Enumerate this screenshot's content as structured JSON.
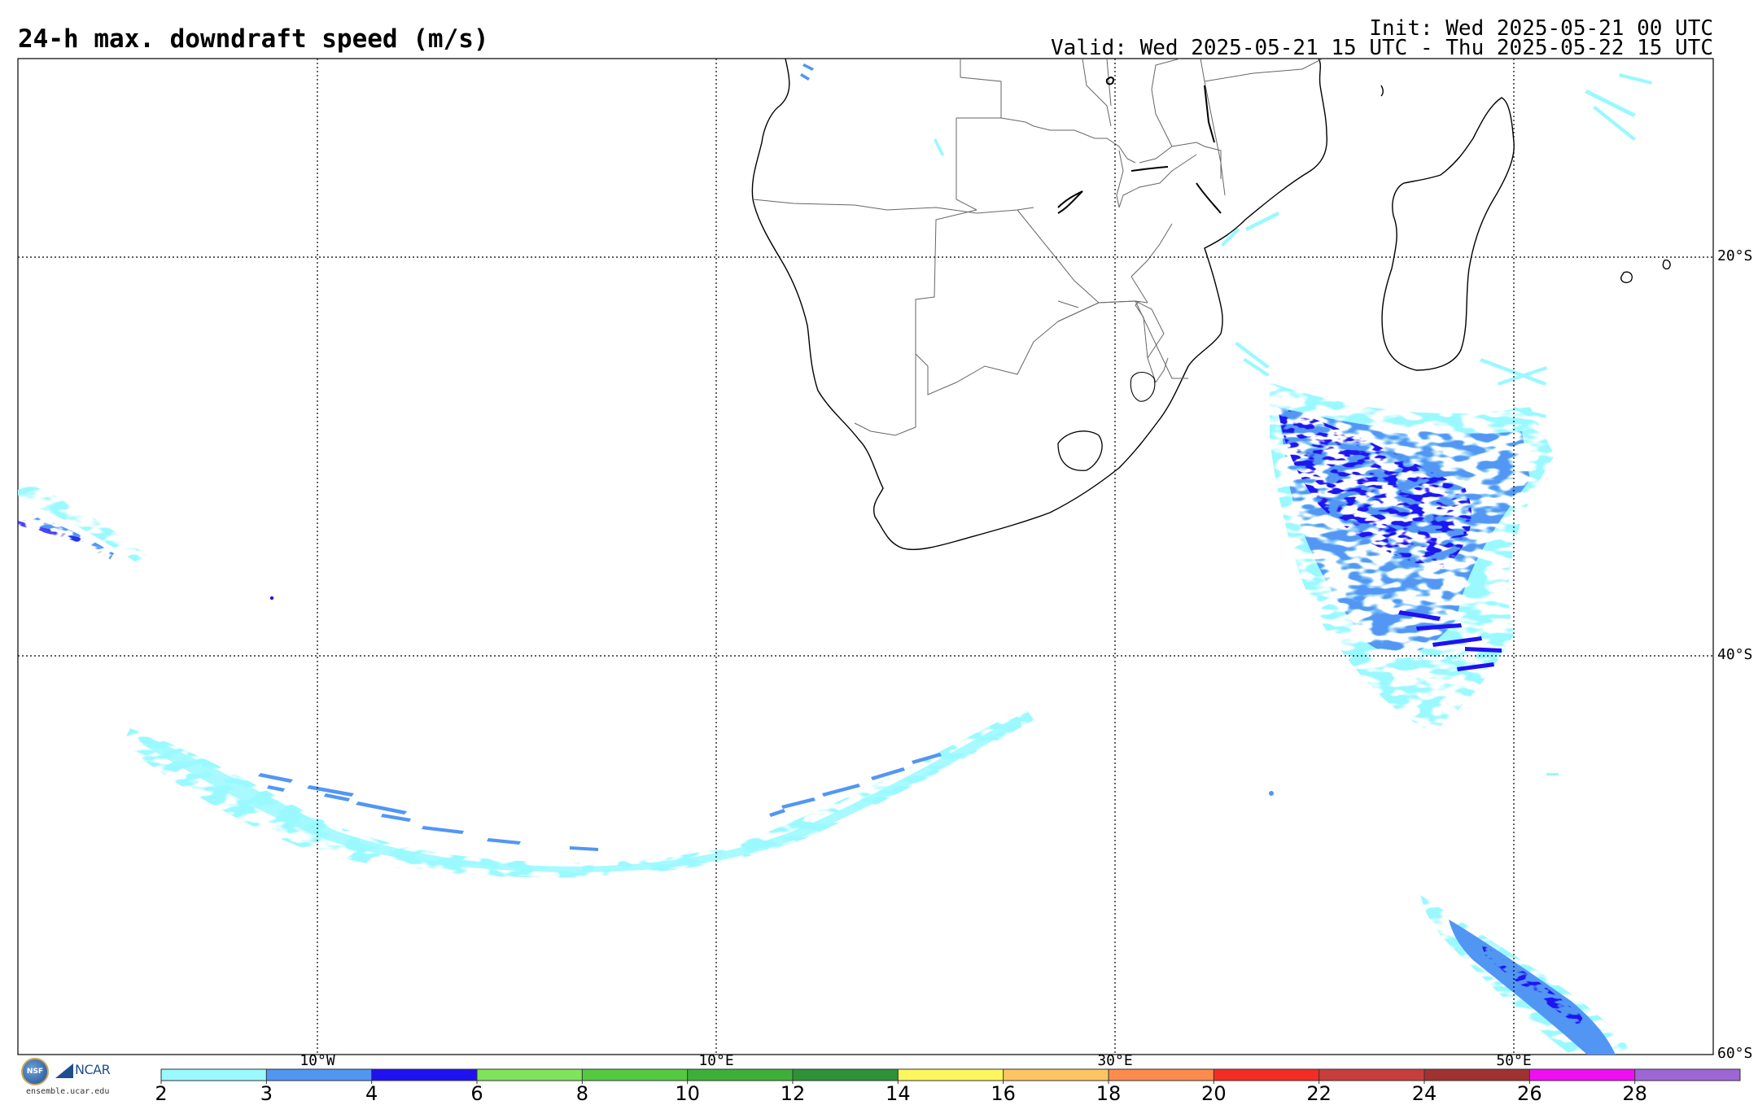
{
  "header": {
    "title": "24-h max. downdraft speed (m/s)",
    "init": "Init: Wed 2025-05-21 00 UTC",
    "valid": "Valid: Wed 2025-05-21 15 UTC - Thu 2025-05-22 15 UTC"
  },
  "map": {
    "lon_ticks": [
      {
        "label": "10°W",
        "lon": -10
      },
      {
        "label": "10°E",
        "lon": 10
      },
      {
        "label": "30°E",
        "lon": 30
      },
      {
        "label": "50°E",
        "lon": 50
      }
    ],
    "lat_ticks": [
      {
        "label": "20°S",
        "lat": -20
      },
      {
        "label": "40°S",
        "lat": -40
      },
      {
        "label": "60°S",
        "lat": -60
      }
    ],
    "grid": "dotted",
    "regions": [
      "southern-africa",
      "madagascar"
    ]
  },
  "colorbar": {
    "labels": [
      "2",
      "3",
      "4",
      "6",
      "8",
      "10",
      "12",
      "14",
      "16",
      "18",
      "20",
      "22",
      "24",
      "26",
      "28"
    ],
    "colors": [
      "#99f9ff",
      "#5296f4",
      "#1e12f2",
      "#7fe35c",
      "#55c93f",
      "#3eb03a",
      "#2e9338",
      "#fbf75d",
      "#fdc662",
      "#fd8b4c",
      "#f52b25",
      "#c83e3c",
      "#a03232",
      "#f00ff2",
      "#9e66d4"
    ]
  },
  "logos": {
    "nsf": "NSF",
    "ncar": "NCAR",
    "site": "ensemble.ucar.edu"
  }
}
